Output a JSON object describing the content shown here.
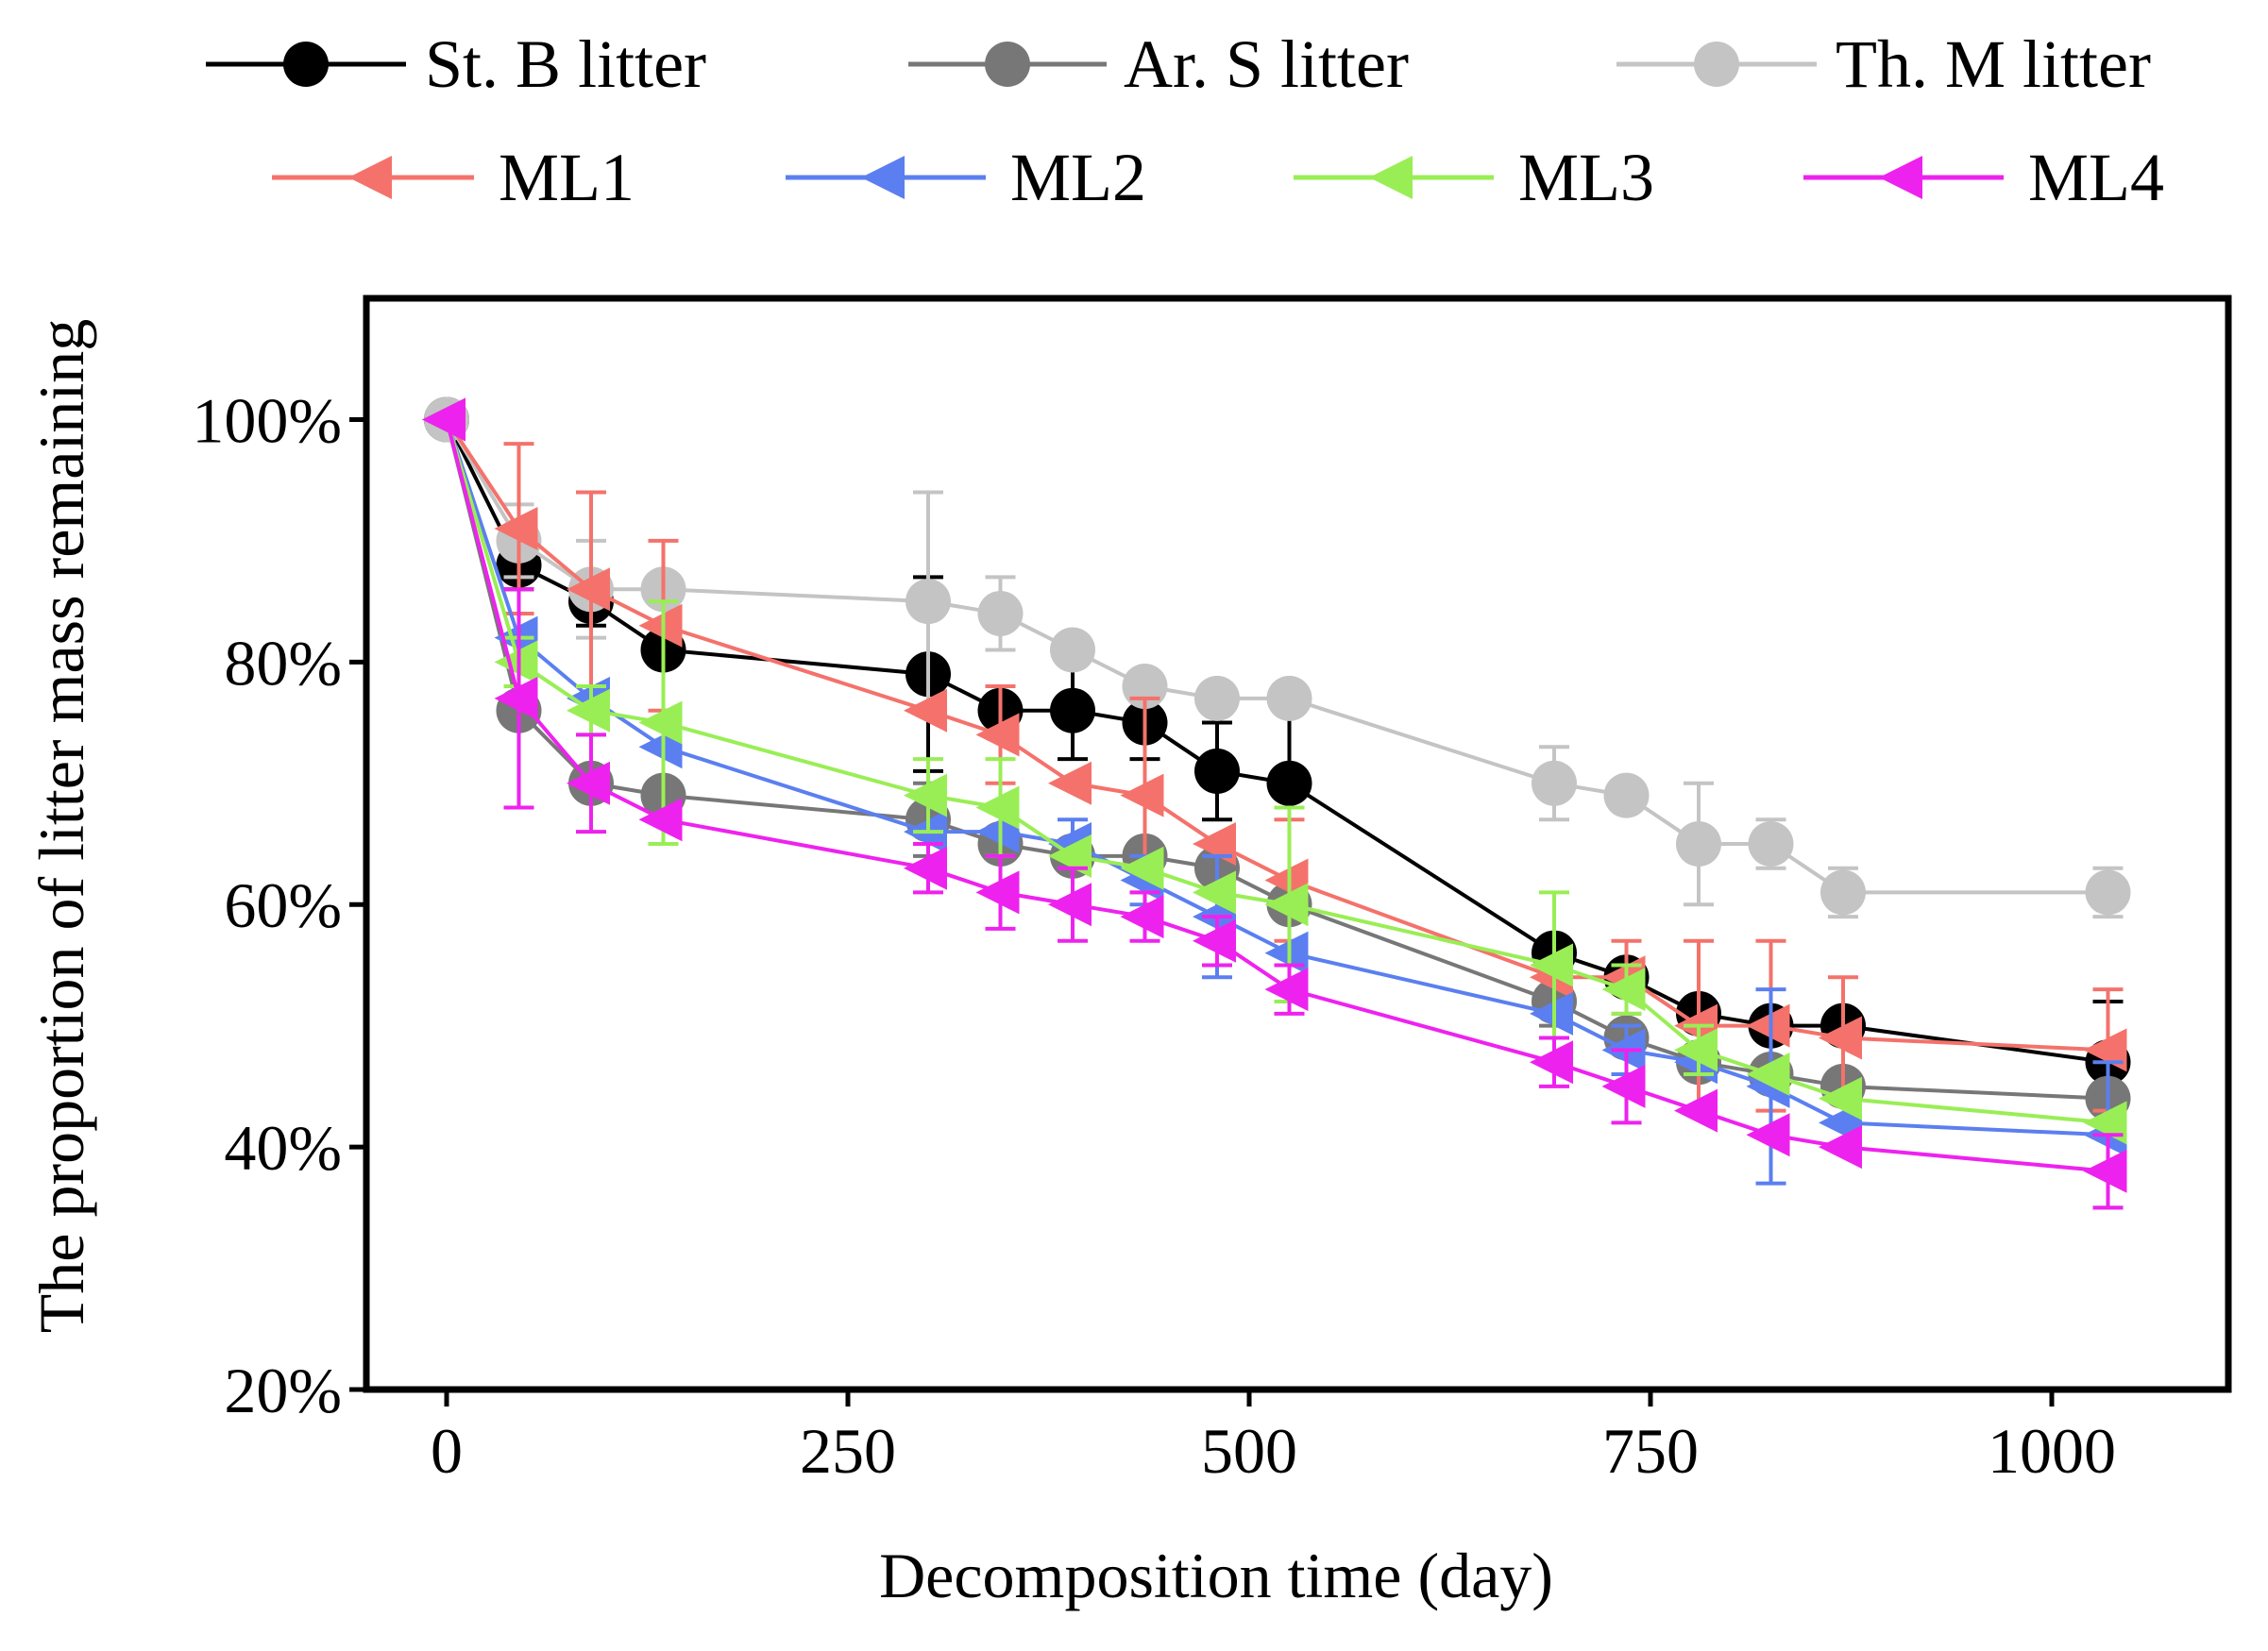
{
  "chart_data": {
    "type": "line",
    "title": "",
    "xlabel": "Decomposition time (day)",
    "ylabel": "The proportion of litter mass remaining",
    "xlim": [
      -50,
      1110
    ],
    "ylim": [
      20,
      110
    ],
    "xticks": [
      0,
      250,
      500,
      750,
      1000
    ],
    "xtick_labels": [
      "0",
      "250",
      "500",
      "750",
      "1000"
    ],
    "yticks": [
      20,
      40,
      60,
      80,
      100
    ],
    "ytick_labels": [
      "20%",
      "40%",
      "60%",
      "80%",
      "100%"
    ],
    "grid": false,
    "legend_position": "top",
    "x": [
      0,
      45,
      90,
      135,
      300,
      345,
      390,
      435,
      480,
      525,
      690,
      735,
      780,
      825,
      870,
      1035
    ],
    "series": [
      {
        "name": "St. B litter",
        "color": "#000000",
        "marker": "circle",
        "values": [
          100,
          88,
          85,
          81,
          79,
          76,
          76,
          75,
          71,
          70,
          56,
          54,
          51,
          50,
          50,
          47
        ],
        "errors": [
          0,
          2,
          2,
          0,
          8,
          0,
          4,
          3,
          4,
          8,
          0,
          0,
          0,
          0,
          0,
          5
        ]
      },
      {
        "name": "Ar. S litter",
        "color": "#777777",
        "marker": "circle",
        "values": [
          100,
          76,
          70,
          69,
          67,
          65,
          64,
          64,
          63,
          60,
          52,
          49,
          47,
          46,
          45,
          44
        ],
        "errors": [
          0,
          0,
          0,
          0,
          3,
          0,
          0,
          0,
          2,
          0,
          2,
          0,
          0,
          0,
          0,
          0
        ]
      },
      {
        "name": "Th. M litter",
        "color": "#c4c4c4",
        "marker": "circle",
        "values": [
          100,
          90,
          86,
          86,
          85,
          84,
          81,
          78,
          77,
          77,
          70,
          69,
          65,
          65,
          61,
          61
        ],
        "errors": [
          0,
          3,
          4,
          0,
          9,
          3,
          0,
          0,
          0,
          0,
          3,
          0,
          5,
          2,
          2,
          2
        ]
      },
      {
        "name": "ML1",
        "color": "#f4726b",
        "marker": "triangle-left",
        "values": [
          100,
          91,
          86,
          83,
          76,
          74,
          70,
          69,
          65,
          62,
          54,
          54,
          50,
          50,
          49,
          48
        ],
        "errors": [
          0,
          7,
          8,
          7,
          0,
          4,
          0,
          8,
          0,
          5,
          0,
          3,
          7,
          7,
          5,
          5
        ]
      },
      {
        "name": "ML2",
        "color": "#5b7ff0",
        "marker": "triangle-left",
        "values": [
          100,
          82,
          77,
          73,
          66,
          66,
          65,
          62,
          59,
          56,
          51,
          48,
          47,
          45,
          42,
          41
        ],
        "errors": [
          0,
          0,
          0,
          0,
          3,
          0,
          2,
          2,
          5,
          0,
          0,
          2,
          0,
          8,
          0,
          6
        ]
      },
      {
        "name": "ML3",
        "color": "#99ee55",
        "marker": "triangle-left",
        "values": [
          100,
          80,
          76,
          75,
          69,
          68,
          64,
          63,
          61,
          60,
          55,
          53,
          48,
          46,
          44,
          42
        ],
        "errors": [
          0,
          2,
          2,
          10,
          3,
          4,
          0,
          0,
          0,
          8,
          6,
          2,
          2,
          0,
          0,
          0
        ]
      },
      {
        "name": "ML4",
        "color": "#ee22ee",
        "marker": "triangle-left",
        "values": [
          100,
          77,
          70,
          67,
          63,
          61,
          60,
          59,
          57,
          53,
          47,
          45,
          43,
          41,
          40,
          38
        ],
        "errors": [
          0,
          9,
          4,
          0,
          2,
          3,
          3,
          2,
          2,
          2,
          2,
          3,
          0,
          0,
          0,
          3
        ]
      }
    ]
  }
}
